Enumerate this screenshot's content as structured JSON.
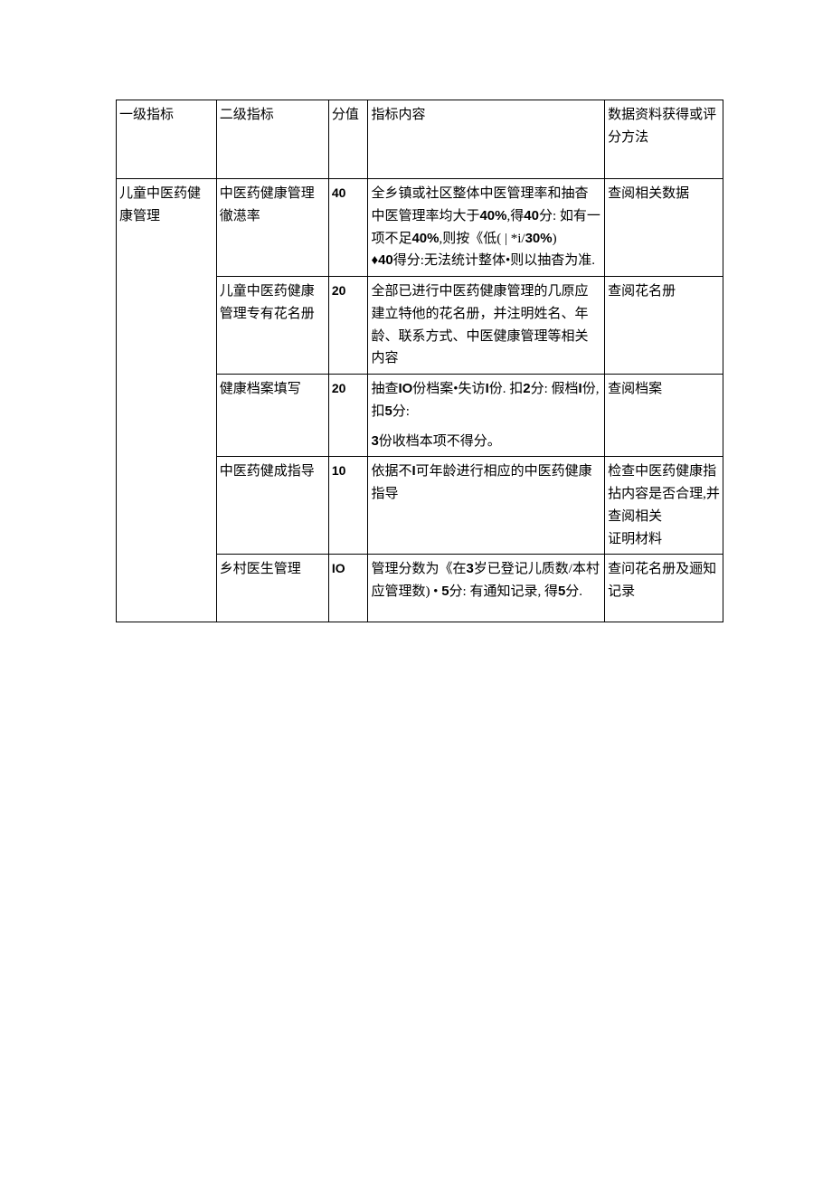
{
  "table": {
    "header": {
      "c1": "一级指标",
      "c2": "二级指标",
      "c3": "分值",
      "c4": "指标内容",
      "c5": "数据资料获得或评分方法"
    },
    "level1": "儿童中医药健康管理",
    "rows": [
      {
        "c2": "中医药健康管理徹濨率",
        "c3": "40",
        "c4_lines": [
          "全乡镇或社区整体中医管理率和抽杳中医管理率均大于40%,得40分: 如有一项不足40%,则按《低( | *i/30%)",
          "♦40得分:无法统计整体•则以抽杳为准."
        ],
        "c5": "查阅相关数据"
      },
      {
        "c2": "儿童中医药健康管理专有花名册",
        "c3": "20",
        "c4_lines": [
          "",
          "全部已进行中医药健康管理的几原应建立特他的花名册，并注明姓名、年龄、联系方式、中医健康管理等相关内容"
        ],
        "c5": "查阅花名册"
      },
      {
        "c2": "健康档案填写",
        "c3": "20",
        "c4_lines": [
          "抽查IO份档案•失访I份. 扣2分: 假档I份,扣5分:",
          "",
          "3份收档本项不得分。"
        ],
        "c5": "查阅档案"
      },
      {
        "c2": "中医药健成指导",
        "c3": "10",
        "c4_lines": [
          "依据不I可年龄进行相应的中医药健康指导"
        ],
        "c5": "检查中医药健康指拈内容是否合理,并查阅相关",
        "c5_extra": "证明材料"
      },
      {
        "c2": "乡村医生管理",
        "c3": "IO",
        "c4_lines": [
          "管理分数为《在3岁已登记儿质数/本村应管理数) • 5分: 有通知记录, 得5分."
        ],
        "c5": "查问花名册及逦知记录"
      }
    ]
  }
}
